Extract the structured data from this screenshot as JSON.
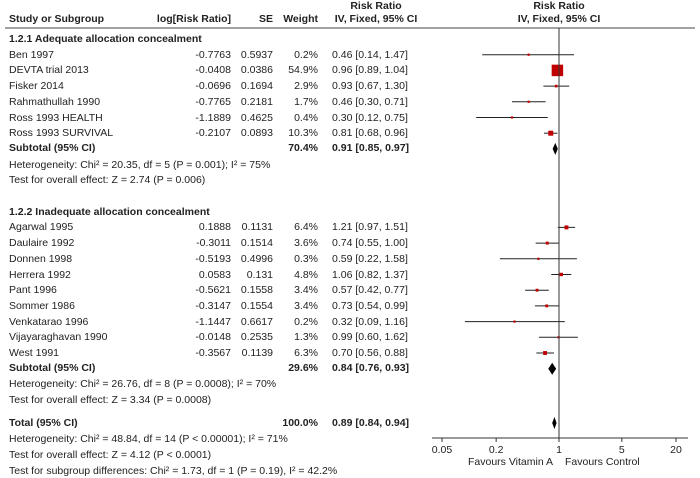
{
  "chart_data": {
    "type": "forest",
    "title": "",
    "header": {
      "study": "Study or Subgroup",
      "logrr": "log[Risk Ratio]",
      "se": "SE",
      "weight": "Weight",
      "rr_top": "Risk Ratio",
      "rr_sub": "IV, Fixed, 95% CI",
      "plot_top": "Risk Ratio",
      "plot_sub": "IV, Fixed, 95% CI"
    },
    "subgroups": [
      {
        "title": "1.2.1 Adequate allocation concealment",
        "studies": [
          {
            "name": "Ben 1997",
            "logrr": "-0.7763",
            "se": "0.5937",
            "weight": "0.2%",
            "ci": "0.46 [0.14, 1.47]",
            "rr": 0.46,
            "lo": 0.14,
            "hi": 1.47,
            "w": 0.2
          },
          {
            "name": "DEVTA trial 2013",
            "logrr": "-0.0408",
            "se": "0.0386",
            "weight": "54.9%",
            "ci": "0.96 [0.89, 1.04]",
            "rr": 0.96,
            "lo": 0.89,
            "hi": 1.04,
            "w": 54.9
          },
          {
            "name": "Fisker 2014",
            "logrr": "-0.0696",
            "se": "0.1694",
            "weight": "2.9%",
            "ci": "0.93 [0.67, 1.30]",
            "rr": 0.93,
            "lo": 0.67,
            "hi": 1.3,
            "w": 2.9
          },
          {
            "name": "Rahmathullah 1990",
            "logrr": "-0.7765",
            "se": "0.2181",
            "weight": "1.7%",
            "ci": "0.46 [0.30, 0.71]",
            "rr": 0.46,
            "lo": 0.3,
            "hi": 0.71,
            "w": 1.7
          },
          {
            "name": "Ross 1993 HEALTH",
            "logrr": "-1.1889",
            "se": "0.4625",
            "weight": "0.4%",
            "ci": "0.30 [0.12, 0.75]",
            "rr": 0.3,
            "lo": 0.12,
            "hi": 0.75,
            "w": 0.4
          },
          {
            "name": "Ross 1993 SURVIVAL",
            "logrr": "-0.2107",
            "se": "0.0893",
            "weight": "10.3%",
            "ci": "0.81 [0.68, 0.96]",
            "rr": 0.81,
            "lo": 0.68,
            "hi": 0.96,
            "w": 10.3
          }
        ],
        "subtotal": {
          "label": "Subtotal (95% CI)",
          "weight": "70.4%",
          "ci": "0.91 [0.85, 0.97]",
          "rr": 0.91,
          "lo": 0.85,
          "hi": 0.97
        },
        "heterogeneity": "Heterogeneity: Chi² = 20.35, df = 5 (P = 0.001); I² = 75%",
        "overall_effect": "Test for overall effect: Z = 2.74 (P = 0.006)"
      },
      {
        "title": "1.2.2 Inadequate allocation concealment",
        "studies": [
          {
            "name": "Agarwal 1995",
            "logrr": "0.1888",
            "se": "0.1131",
            "weight": "6.4%",
            "ci": "1.21 [0.97, 1.51]",
            "rr": 1.21,
            "lo": 0.97,
            "hi": 1.51,
            "w": 6.4
          },
          {
            "name": "Daulaire 1992",
            "logrr": "-0.3011",
            "se": "0.1514",
            "weight": "3.6%",
            "ci": "0.74 [0.55, 1.00]",
            "rr": 0.74,
            "lo": 0.55,
            "hi": 1.0,
            "w": 3.6
          },
          {
            "name": "Donnen 1998",
            "logrr": "-0.5193",
            "se": "0.4996",
            "weight": "0.3%",
            "ci": "0.59 [0.22, 1.58]",
            "rr": 0.59,
            "lo": 0.22,
            "hi": 1.58,
            "w": 0.3
          },
          {
            "name": "Herrera 1992",
            "logrr": "0.0583",
            "se": "0.131",
            "weight": "4.8%",
            "ci": "1.06 [0.82, 1.37]",
            "rr": 1.06,
            "lo": 0.82,
            "hi": 1.37,
            "w": 4.8
          },
          {
            "name": "Pant 1996",
            "logrr": "-0.5621",
            "se": "0.1558",
            "weight": "3.4%",
            "ci": "0.57 [0.42, 0.77]",
            "rr": 0.57,
            "lo": 0.42,
            "hi": 0.77,
            "w": 3.4
          },
          {
            "name": "Sommer 1986",
            "logrr": "-0.3147",
            "se": "0.1554",
            "weight": "3.4%",
            "ci": "0.73 [0.54, 0.99]",
            "rr": 0.73,
            "lo": 0.54,
            "hi": 0.99,
            "w": 3.4
          },
          {
            "name": "Venkatarao 1996",
            "logrr": "-1.1447",
            "se": "0.6617",
            "weight": "0.2%",
            "ci": "0.32 [0.09, 1.16]",
            "rr": 0.32,
            "lo": 0.09,
            "hi": 1.16,
            "w": 0.2
          },
          {
            "name": "Vijayaraghavan 1990",
            "logrr": "-0.0148",
            "se": "0.2535",
            "weight": "1.3%",
            "ci": "0.99 [0.60, 1.62]",
            "rr": 0.99,
            "lo": 0.6,
            "hi": 1.62,
            "w": 1.3
          },
          {
            "name": "West 1991",
            "logrr": "-0.3567",
            "se": "0.1139",
            "weight": "6.3%",
            "ci": "0.70 [0.56, 0.88]",
            "rr": 0.7,
            "lo": 0.56,
            "hi": 0.88,
            "w": 6.3
          }
        ],
        "subtotal": {
          "label": "Subtotal (95% CI)",
          "weight": "29.6%",
          "ci": "0.84 [0.76, 0.93]",
          "rr": 0.84,
          "lo": 0.76,
          "hi": 0.93
        },
        "heterogeneity": "Heterogeneity: Chi² = 26.76, df = 8 (P = 0.0008); I² = 70%",
        "overall_effect": "Test for overall effect: Z = 3.34 (P = 0.0008)"
      }
    ],
    "total": {
      "label": "Total (95% CI)",
      "weight": "100.0%",
      "ci": "0.89 [0.84, 0.94]",
      "rr": 0.89,
      "lo": 0.84,
      "hi": 0.94,
      "heterogeneity": "Heterogeneity: Chi² = 48.84, df = 14 (P < 0.00001); I² = 71%",
      "overall_effect": "Test for overall effect: Z = 4.12 (P < 0.0001)",
      "subgroup_diff": "Test for subgroup differences: Chi² = 1.73, df = 1 (P = 0.19), I² = 42.2%"
    },
    "x_axis": {
      "scale": "log",
      "ticks": [
        0.05,
        0.2,
        1,
        5,
        20
      ],
      "tick_labels": [
        "0.05",
        "0.2",
        "1",
        "5",
        "20"
      ],
      "xlim": [
        0.05,
        20
      ],
      "left_label": "Favours Vitamin A",
      "right_label": "Favours Control"
    },
    "colors": {
      "square": "#c00000",
      "line": "#222222",
      "diamond": "#000000"
    }
  }
}
